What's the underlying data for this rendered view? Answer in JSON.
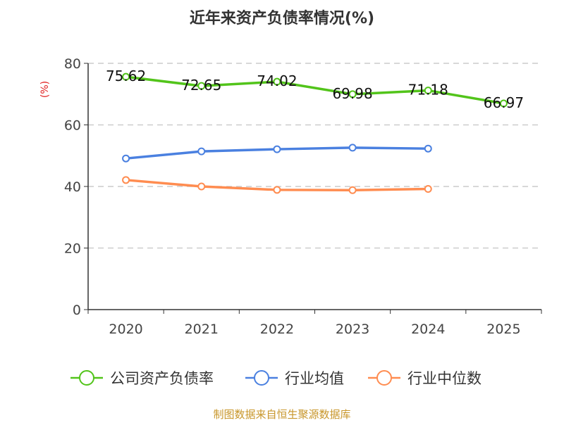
{
  "chart_data": {
    "type": "line",
    "title": "近年来资产负债率情况(%)",
    "ylabel": "(%)",
    "ylim": [
      0,
      80
    ],
    "yticks": [
      0,
      20,
      40,
      60,
      80
    ],
    "grid": true,
    "legend_position": "bottom",
    "categories": [
      "2020",
      "2021",
      "2022",
      "2023",
      "2024",
      "2025"
    ],
    "series": [
      {
        "name": "公司资产负债率",
        "color": "#52c41a",
        "values": [
          75.62,
          72.65,
          74.02,
          69.98,
          71.18,
          66.97
        ],
        "labels": [
          "75.62",
          "72.65",
          "74.02",
          "69.98",
          "71.18",
          "66.97"
        ]
      },
      {
        "name": "行业均值",
        "color": "#4a80e0",
        "values": [
          49.1,
          51.4,
          52.1,
          52.6,
          52.3,
          null
        ]
      },
      {
        "name": "行业中位数",
        "color": "#ff8c50",
        "values": [
          42.1,
          40.0,
          38.9,
          38.8,
          39.2,
          null
        ]
      }
    ]
  },
  "footer": "制图数据来自恒生聚源数据库"
}
